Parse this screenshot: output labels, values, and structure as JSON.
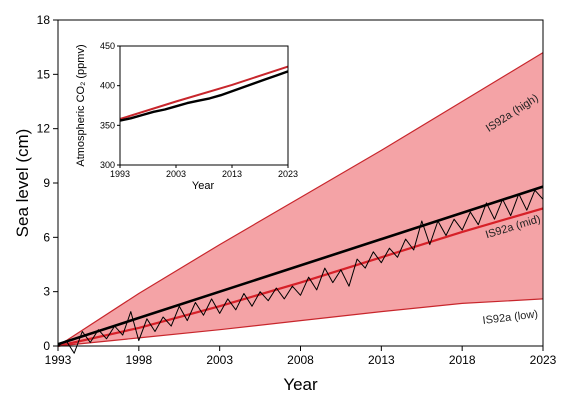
{
  "chart_data": [
    {
      "type": "line",
      "xlabel": "Year",
      "ylabel": "Sea level (cm)",
      "xlim": [
        1993,
        2023
      ],
      "ylim": [
        0,
        18
      ],
      "xticks": [
        "1993",
        "1998",
        "2003",
        "2008",
        "2013",
        "2018",
        "2023"
      ],
      "yticks": [
        "0",
        "3",
        "6",
        "9",
        "12",
        "15",
        "18"
      ],
      "grid": false,
      "band": {
        "fill_color": "#f4a3a6",
        "edge_color": "#c8262c",
        "x": [
          1993,
          1998,
          2003,
          2008,
          2013,
          2018,
          2023
        ],
        "lower": [
          0,
          0.45,
          0.9,
          1.4,
          1.9,
          2.35,
          2.6
        ],
        "upper": [
          0,
          2.9,
          5.6,
          8.2,
          10.8,
          13.5,
          16.2
        ]
      },
      "series": [
        {
          "name": "IS92a (high)",
          "color": "#c8262c",
          "x": [
            1993,
            1998,
            2003,
            2008,
            2013,
            2018,
            2023
          ],
          "values": [
            0,
            2.9,
            5.6,
            8.2,
            10.8,
            13.5,
            16.2
          ]
        },
        {
          "name": "IS92a (mid)",
          "color": "#d62028",
          "x": [
            1993,
            1998,
            2003,
            2008,
            2013,
            2018,
            2023
          ],
          "values": [
            0,
            1.0,
            2.2,
            3.5,
            4.9,
            6.3,
            7.6
          ]
        },
        {
          "name": "IS92a (low)",
          "color": "#c8262c",
          "x": [
            1993,
            1998,
            2003,
            2008,
            2013,
            2018,
            2023
          ],
          "values": [
            0,
            0.45,
            0.9,
            1.4,
            1.9,
            2.35,
            2.6
          ]
        },
        {
          "name": "",
          "color": "#000000",
          "style": "trend",
          "x": [
            1993,
            2023
          ],
          "values": [
            0.1,
            8.8
          ]
        },
        {
          "name": "",
          "color": "#000000",
          "style": "observed",
          "x": [
            1993.0,
            1993.5,
            1994.0,
            1994.5,
            1995.0,
            1995.5,
            1996.0,
            1996.5,
            1997.0,
            1997.5,
            1998.0,
            1998.5,
            1999.0,
            1999.5,
            2000.0,
            2000.5,
            2001.0,
            2001.5,
            2002.0,
            2002.5,
            2003.0,
            2003.5,
            2004.0,
            2004.5,
            2005.0,
            2005.5,
            2006.0,
            2006.5,
            2007.0,
            2007.5,
            2008.0,
            2008.5,
            2009.0,
            2009.5,
            2010.0,
            2010.5,
            2011.0,
            2011.5,
            2012.0,
            2012.5,
            2013.0,
            2013.5,
            2014.0,
            2014.5,
            2015.0,
            2015.5,
            2016.0,
            2016.5,
            2017.0,
            2017.5,
            2018.0,
            2018.5,
            2019.0,
            2019.5,
            2020.0,
            2020.5,
            2021.0,
            2021.5,
            2022.0,
            2022.5,
            2023.0
          ],
          "values": [
            0.0,
            0.3,
            -0.4,
            0.8,
            0.2,
            0.9,
            0.4,
            1.1,
            0.6,
            1.9,
            0.3,
            1.5,
            0.8,
            1.6,
            1.1,
            2.2,
            1.4,
            2.4,
            1.7,
            2.6,
            1.8,
            2.6,
            2.0,
            2.9,
            2.2,
            3.0,
            2.5,
            3.2,
            2.6,
            3.3,
            2.8,
            3.8,
            3.1,
            4.3,
            3.5,
            4.2,
            3.3,
            4.8,
            4.3,
            5.2,
            4.6,
            5.4,
            4.9,
            5.9,
            5.3,
            6.9,
            5.6,
            6.9,
            6.1,
            7.0,
            6.4,
            7.4,
            6.7,
            7.9,
            7.0,
            8.1,
            7.2,
            8.4,
            7.5,
            8.6,
            8.1
          ]
        }
      ],
      "annotations": [
        {
          "text": "IS92a (high)",
          "x": 2021.2,
          "y": 12.7
        },
        {
          "text": "IS92a (mid)",
          "x": 2021.2,
          "y": 6.4
        },
        {
          "text": "IS92a (low)",
          "x": 2021.0,
          "y": 1.4
        }
      ]
    },
    {
      "type": "line",
      "xlabel": "Year",
      "ylabel": "Atmospheric CO₂ (ppmv)",
      "xlim": [
        1993,
        2023
      ],
      "ylim": [
        300,
        450
      ],
      "xticks": [
        "1993",
        "2003",
        "2013",
        "2023"
      ],
      "yticks": [
        "300",
        "350",
        "400",
        "450"
      ],
      "grid": false,
      "series": [
        {
          "name": "",
          "color": "#c8262c",
          "x": [
            1993,
            2003,
            2013,
            2023
          ],
          "values": [
            358,
            380,
            401,
            424
          ]
        },
        {
          "name": "",
          "color": "#000000",
          "x": [
            1993,
            1995,
            1997,
            1999,
            2001,
            2003,
            2005,
            2007,
            2009,
            2011,
            2013,
            2015,
            2017,
            2019,
            2021,
            2023
          ],
          "values": [
            356,
            359,
            363,
            367,
            370,
            374,
            378,
            381,
            384,
            388,
            393,
            398,
            403,
            408,
            413,
            418
          ]
        }
      ]
    }
  ]
}
